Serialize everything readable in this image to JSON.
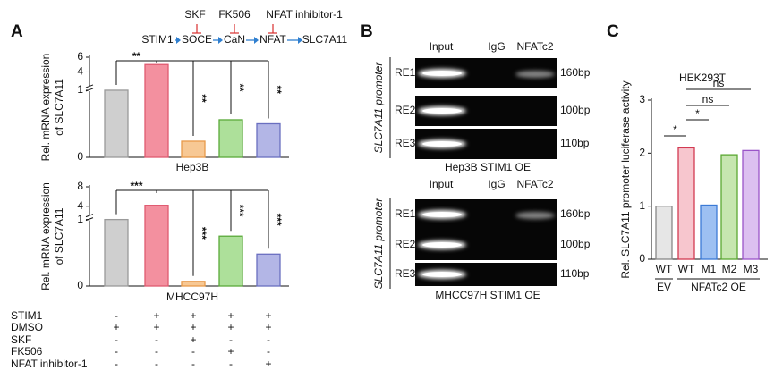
{
  "panel_labels": [
    "A",
    "B",
    "C"
  ],
  "pathway": {
    "inhibitors": [
      "SKF",
      "FK506",
      "NFAT inhibitor-1"
    ],
    "nodes": [
      "STIM1",
      "SOCE",
      "CaN",
      "NFAT",
      "SLC7A11"
    ]
  },
  "chart_data": [
    {
      "type": "bar",
      "ylabel": [
        "Rel. mRNA expression",
        "of SLC7A11"
      ],
      "xlabel": "Hep3B",
      "values": [
        1.0,
        5.0,
        0.24,
        0.56,
        0.5
      ],
      "colors": [
        "#cfcfcf",
        "#f3909f",
        "#f7c894",
        "#ade09a",
        "#b3b6e6"
      ],
      "edge_colors": [
        "#9a9a9a",
        "#e05a70",
        "#e89a4a",
        "#5aaa3a",
        "#6a6fc0"
      ],
      "ylim": [
        0,
        6
      ],
      "ybreak": [
        1,
        2
      ],
      "yticks": [
        0,
        1,
        4,
        6
      ],
      "annotations": [
        "**",
        "**",
        "**",
        "**"
      ]
    },
    {
      "type": "bar",
      "ylabel": [
        "Rel. mRNA expression",
        "of SLC7A11"
      ],
      "xlabel": "MHCC97H",
      "values": [
        1.0,
        4.2,
        0.07,
        0.75,
        0.48
      ],
      "colors": [
        "#cfcfcf",
        "#f3909f",
        "#f7c894",
        "#ade09a",
        "#b3b6e6"
      ],
      "edge_colors": [
        "#9a9a9a",
        "#e05a70",
        "#e89a4a",
        "#5aaa3a",
        "#6a6fc0"
      ],
      "ylim": [
        0,
        8
      ],
      "ybreak": [
        1,
        2
      ],
      "yticks": [
        0,
        1,
        4,
        8
      ],
      "annotations": [
        "***",
        "***",
        "***",
        "***"
      ]
    },
    {
      "type": "bar",
      "title": "HEK293T",
      "ylabel": "Rel. SLC7A11 promoter luciferase activity",
      "categories": [
        "WT",
        "WT",
        "M1",
        "M2",
        "M3"
      ],
      "groups": [
        "EV",
        "NFATc2 OE"
      ],
      "values": [
        1.0,
        2.1,
        1.02,
        1.97,
        2.05
      ],
      "colors": [
        "#e6e6e6",
        "#f7c6ce",
        "#9dc0f2",
        "#c6e6b0",
        "#dcc0f0"
      ],
      "edge_colors": [
        "#888888",
        "#d23a52",
        "#3b7ad6",
        "#5aa832",
        "#9a55c8"
      ],
      "ylim": [
        0,
        3
      ],
      "yticks": [
        0,
        1,
        2,
        3
      ],
      "annotations": [
        "*",
        "*",
        "ns",
        "ns"
      ]
    }
  ],
  "treatments": {
    "rows": [
      {
        "label": "STIM1",
        "marks": [
          "-",
          "+",
          "+",
          "+",
          "+"
        ]
      },
      {
        "label": "DMSO",
        "marks": [
          "+",
          "+",
          "+",
          "+",
          "+"
        ]
      },
      {
        "label": "SKF",
        "marks": [
          "-",
          "-",
          "+",
          "-",
          "-"
        ]
      },
      {
        "label": "FK506",
        "marks": [
          "-",
          "-",
          "-",
          "+",
          "-"
        ]
      },
      {
        "label": "NFAT inhibitor-1",
        "marks": [
          "-",
          "-",
          "-",
          "-",
          "+"
        ]
      }
    ]
  },
  "gels": [
    {
      "columns": [
        "Input",
        "IgG",
        "NFATc2"
      ],
      "rows": [
        "RE1",
        "RE2",
        "RE3"
      ],
      "sizes": [
        "160bp",
        "100bp",
        "110bp"
      ],
      "side_label": "SLC7A11 promoter",
      "caption": "Hep3B STIM1 OE"
    },
    {
      "columns": [
        "Input",
        "IgG",
        "NFATc2"
      ],
      "rows": [
        "RE1",
        "RE2",
        "RE3"
      ],
      "sizes": [
        "160bp",
        "100bp",
        "110bp"
      ],
      "side_label": "SLC7A11 promoter",
      "caption": "MHCC97H STIM1 OE"
    }
  ]
}
